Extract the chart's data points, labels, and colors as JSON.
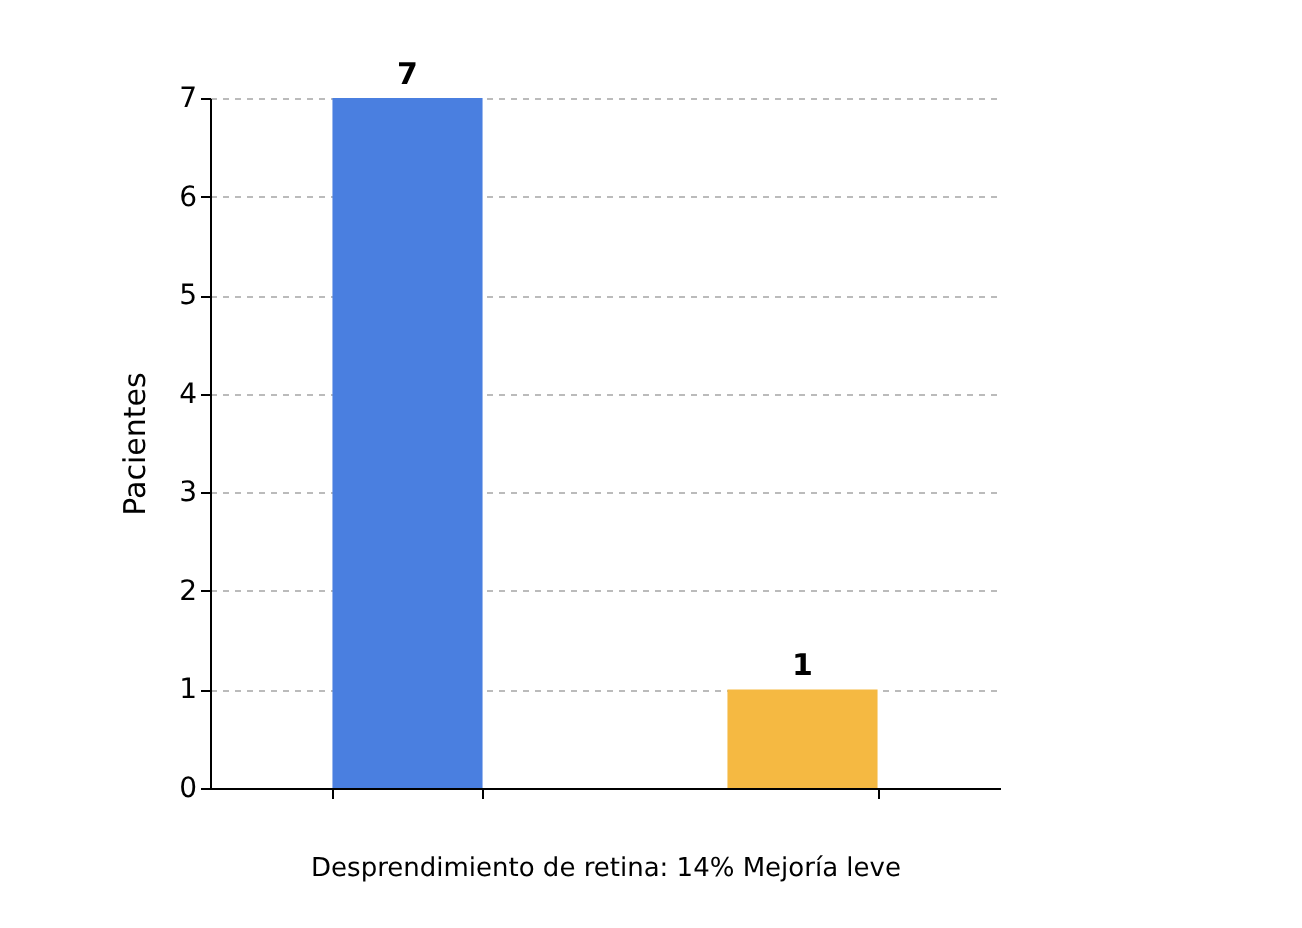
{
  "chart_data": {
    "type": "bar",
    "categories": [
      null,
      null
    ],
    "values": [
      7,
      1
    ],
    "colors": [
      "#4a7fe0",
      "#f5b942"
    ],
    "ylabel": "Pacientes",
    "xlabel": "Desprendimiento de retina: 14% Mejoría leve",
    "ylim": [
      0,
      7
    ],
    "yticks": [
      0,
      1,
      2,
      3,
      4,
      5,
      6,
      7
    ],
    "grid": "y",
    "data_labels": true,
    "tick_labels": "y"
  }
}
